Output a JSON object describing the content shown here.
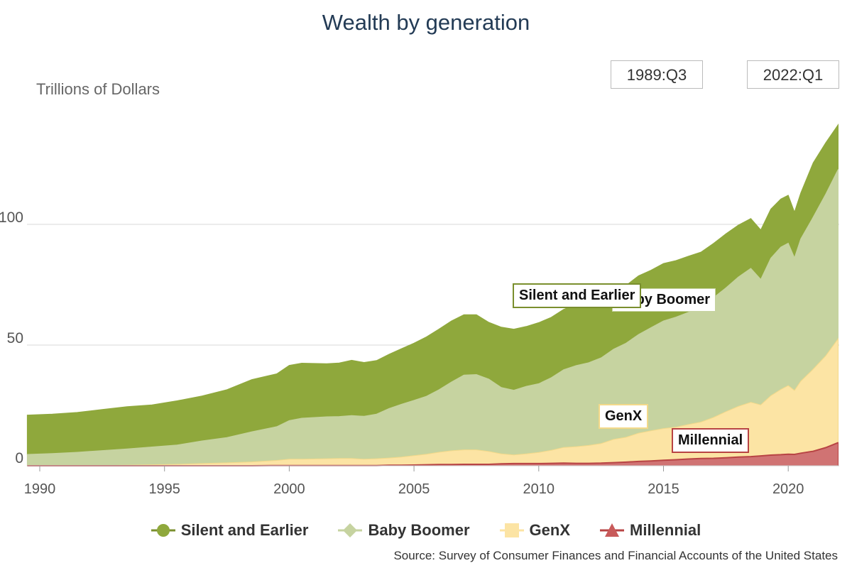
{
  "title": "Wealth by generation",
  "date_range": {
    "start": "1989:Q3",
    "end": "2022:Q1"
  },
  "source": "Source: Survey of Consumer Finances and Financial Accounts of the United States",
  "colors": {
    "silent": "#8fa83c",
    "boomer": "#c6d3a0",
    "genx": "#fce4a4",
    "millennial": "#c85a5a",
    "silent_border": "#7a8f2e",
    "boomer_border": "#c6d3a0",
    "genx_border": "#f3d98a",
    "millennial_border": "#b84444"
  },
  "chart_data": {
    "type": "area",
    "stacked": true,
    "title": "Wealth by generation",
    "ylabel": "Trillions of Dollars",
    "xlabel": "",
    "xlim": [
      1989.5,
      2022.1
    ],
    "ylim": [
      0,
      140
    ],
    "y_ticks": [
      0,
      50,
      100
    ],
    "x_ticks": [
      1990,
      1995,
      2000,
      2005,
      2010,
      2015,
      2020
    ],
    "grid": true,
    "legend": "bottom",
    "x": [
      1989.5,
      1990.5,
      1991.5,
      1992.5,
      1993.5,
      1994.5,
      1995.5,
      1996.5,
      1997.5,
      1998.5,
      1999.5,
      2000.0,
      2000.5,
      2001.5,
      2002.0,
      2002.5,
      2003.0,
      2003.5,
      2004.0,
      2004.5,
      2005.0,
      2005.5,
      2006.0,
      2006.5,
      2007.0,
      2007.5,
      2008.0,
      2008.5,
      2009.0,
      2009.5,
      2010.0,
      2010.5,
      2011.0,
      2011.5,
      2012.0,
      2012.5,
      2013.0,
      2013.5,
      2014.0,
      2014.5,
      2015.0,
      2015.5,
      2016.0,
      2016.5,
      2017.0,
      2017.5,
      2018.0,
      2018.5,
      2018.9,
      2019.3,
      2019.7,
      2020.0,
      2020.25,
      2020.5,
      2021.0,
      2021.5,
      2022.0
    ],
    "series": [
      {
        "name": "Millennial",
        "values": [
          0.0,
          0.0,
          0.0,
          0.0,
          0.0,
          0.0,
          0.0,
          0.0,
          0.0,
          0.0,
          0.1,
          0.1,
          0.1,
          0.1,
          0.1,
          0.1,
          0.1,
          0.1,
          0.2,
          0.2,
          0.3,
          0.4,
          0.5,
          0.5,
          0.6,
          0.6,
          0.6,
          0.8,
          0.9,
          0.9,
          0.9,
          1.0,
          1.1,
          1.0,
          1.0,
          1.1,
          1.3,
          1.5,
          1.8,
          2.0,
          2.3,
          2.5,
          2.8,
          3.0,
          3.1,
          3.3,
          3.6,
          3.8,
          4.1,
          4.4,
          4.6,
          4.8,
          4.7,
          5.2,
          6.0,
          7.5,
          9.6
        ]
      },
      {
        "name": "GenX",
        "values": [
          0.0,
          0.0,
          0.1,
          0.1,
          0.2,
          0.4,
          0.6,
          0.9,
          1.2,
          1.6,
          2.1,
          2.6,
          2.6,
          2.8,
          2.9,
          2.9,
          2.6,
          2.8,
          3.0,
          3.4,
          3.9,
          4.4,
          5.1,
          5.7,
          6.0,
          6.0,
          5.3,
          4.1,
          3.6,
          4.0,
          4.6,
          5.4,
          6.5,
          6.9,
          7.4,
          8.1,
          9.6,
          10.3,
          11.7,
          12.5,
          13.1,
          13.5,
          14.3,
          15.1,
          16.9,
          19.1,
          21.0,
          22.5,
          21.1,
          24.6,
          27.0,
          28.4,
          26.5,
          29.8,
          34.0,
          38.0,
          43.0
        ]
      },
      {
        "name": "Baby Boomer",
        "values": [
          4.7,
          5.1,
          5.5,
          6.2,
          6.8,
          7.4,
          8.0,
          9.4,
          10.5,
          12.5,
          14.0,
          16.0,
          17.0,
          17.4,
          17.4,
          17.8,
          17.8,
          18.5,
          20.5,
          21.9,
          22.9,
          24.0,
          25.9,
          28.5,
          31.0,
          31.2,
          30.0,
          27.5,
          26.8,
          28.0,
          28.5,
          30.1,
          32.2,
          33.6,
          34.3,
          35.5,
          37.4,
          39.0,
          40.9,
          42.7,
          44.6,
          45.6,
          46.5,
          47.6,
          49.6,
          51.3,
          53.6,
          55.5,
          52.0,
          57.0,
          59.0,
          59.0,
          55.0,
          59.0,
          63.0,
          67.0,
          70.2
        ]
      },
      {
        "name": "Silent and Earlier",
        "values": [
          16.3,
          16.3,
          16.5,
          17.0,
          17.5,
          17.4,
          18.3,
          18.6,
          19.8,
          21.6,
          21.9,
          22.9,
          22.8,
          22.0,
          22.2,
          22.9,
          22.3,
          22.2,
          22.5,
          23.0,
          23.7,
          24.6,
          25.1,
          25.3,
          25.0,
          24.8,
          23.5,
          25.0,
          25.3,
          24.8,
          25.3,
          25.0,
          25.0,
          25.3,
          24.4,
          24.2,
          24.0,
          23.9,
          24.3,
          23.8,
          23.8,
          23.4,
          23.2,
          22.8,
          22.5,
          22.4,
          21.5,
          20.6,
          20.5,
          20.3,
          19.9,
          19.9,
          18.9,
          19.0,
          22.5,
          21.3,
          18.5
        ]
      }
    ],
    "annotations": [
      "Silent and Earlier",
      "Baby Boomer",
      "GenX",
      "Millennial"
    ]
  },
  "legend": [
    {
      "key": "silent",
      "label": "Silent and Earlier",
      "symbol": "circle"
    },
    {
      "key": "boomer",
      "label": "Baby Boomer",
      "symbol": "diamond"
    },
    {
      "key": "genx",
      "label": "GenX",
      "symbol": "square"
    },
    {
      "key": "millennial",
      "label": "Millennial",
      "symbol": "triangle"
    }
  ],
  "callouts": {
    "silent": "Silent and Earlier",
    "boomer": "Baby Boomer",
    "genx": "GenX",
    "millennial": "Millennial"
  }
}
